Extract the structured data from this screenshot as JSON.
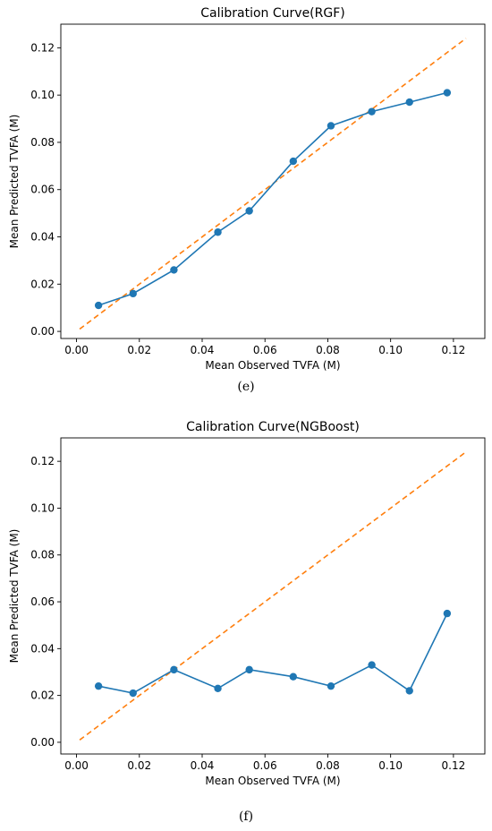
{
  "chart_data": [
    {
      "type": "line",
      "title": "Calibration Curve(RGF)",
      "xlabel": "Mean Observed TVFA (M)",
      "ylabel": "Mean Predicted TVFA (M)",
      "xlim": [
        -0.005,
        0.13
      ],
      "ylim": [
        -0.003,
        0.13
      ],
      "xticks": [
        0.0,
        0.02,
        0.04,
        0.06,
        0.08,
        0.1,
        0.12
      ],
      "xtick_labels": [
        "0.00",
        "0.02",
        "0.04",
        "0.06",
        "0.08",
        "0.10",
        "0.12"
      ],
      "yticks": [
        0.0,
        0.02,
        0.04,
        0.06,
        0.08,
        0.1,
        0.12
      ],
      "ytick_labels": [
        "0.00",
        "0.02",
        "0.04",
        "0.06",
        "0.08",
        "0.10",
        "0.12"
      ],
      "grid": false,
      "series": [
        {
          "x": [
            0.007,
            0.018,
            0.031,
            0.045,
            0.055,
            0.069,
            0.081,
            0.094,
            0.106,
            0.118
          ],
          "y": [
            0.011,
            0.016,
            0.026,
            0.042,
            0.051,
            0.072,
            0.087,
            0.093,
            0.097,
            0.101
          ],
          "color": "#1f77b4",
          "marker": "circle"
        },
        {
          "x": [
            0.001,
            0.124
          ],
          "y": [
            0.001,
            0.124
          ],
          "color": "#ff7f0e",
          "style": "dashed"
        }
      ]
    },
    {
      "type": "line",
      "title": "Calibration Curve(NGBoost)",
      "xlabel": "Mean Observed TVFA (M)",
      "ylabel": "Mean Predicted TVFA (M)",
      "xlim": [
        -0.005,
        0.13
      ],
      "ylim": [
        -0.005,
        0.13
      ],
      "xticks": [
        0.0,
        0.02,
        0.04,
        0.06,
        0.08,
        0.1,
        0.12
      ],
      "xtick_labels": [
        "0.00",
        "0.02",
        "0.04",
        "0.06",
        "0.08",
        "0.10",
        "0.12"
      ],
      "yticks": [
        0.0,
        0.02,
        0.04,
        0.06,
        0.08,
        0.1,
        0.12
      ],
      "ytick_labels": [
        "0.00",
        "0.02",
        "0.04",
        "0.06",
        "0.08",
        "0.10",
        "0.12"
      ],
      "grid": false,
      "series": [
        {
          "x": [
            0.007,
            0.018,
            0.031,
            0.045,
            0.055,
            0.069,
            0.081,
            0.094,
            0.106,
            0.118
          ],
          "y": [
            0.024,
            0.021,
            0.031,
            0.023,
            0.031,
            0.028,
            0.024,
            0.033,
            0.022,
            0.055
          ],
          "color": "#1f77b4",
          "marker": "circle"
        },
        {
          "x": [
            0.001,
            0.124
          ],
          "y": [
            0.001,
            0.124
          ],
          "color": "#ff7f0e",
          "style": "dashed"
        }
      ]
    }
  ],
  "captions": [
    "(e)",
    "(f)"
  ]
}
